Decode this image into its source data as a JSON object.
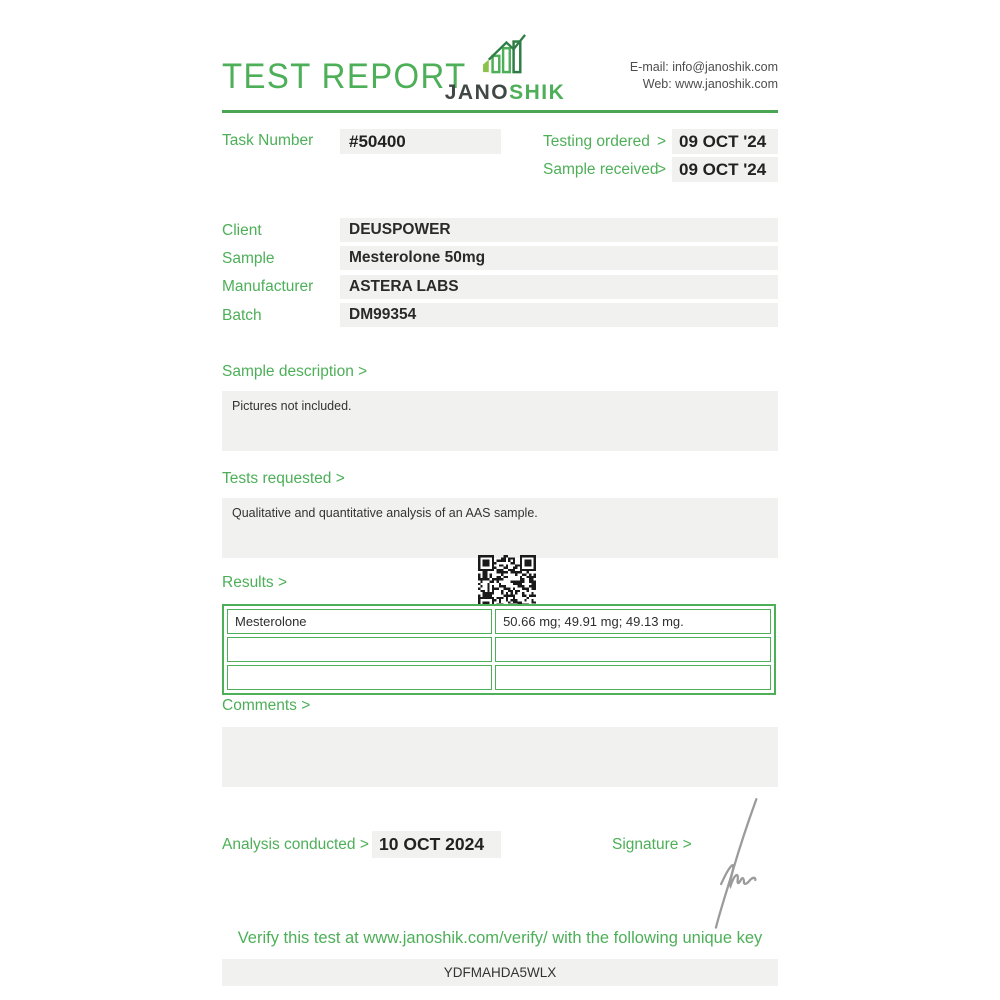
{
  "colors": {
    "accent_green": "#4daf58",
    "box_bg": "#f1f1ef",
    "text_dark": "#2a2a2a",
    "logo_dark": "#3f4845"
  },
  "icons": {
    "logo": "bar-chart-growth-icon",
    "qr": "qr-code",
    "signature": "handwritten-signature"
  },
  "header": {
    "title": "TEST REPORT",
    "logo_jano": "JANO",
    "logo_shik": "SHIK",
    "email_line": "E-mail: info@janoshik.com",
    "web_line": "Web: www.janoshik.com"
  },
  "task": {
    "label": "Task Number",
    "value": "#50400",
    "arrow": ">",
    "testing_ordered_label": "Testing ordered",
    "testing_ordered_value": "09 OCT '24",
    "sample_received_label": "Sample received",
    "sample_received_value": "09 OCT '24"
  },
  "info": {
    "client_label": "Client",
    "client_value": "DEUSPOWER",
    "sample_label": "Sample",
    "sample_value": "Mesterolone 50mg",
    "manufacturer_label": "Manufacturer",
    "manufacturer_value": "ASTERA LABS",
    "batch_label": "Batch",
    "batch_value": "DM99354"
  },
  "sample_description": {
    "label": "Sample description >",
    "text": "Pictures not included."
  },
  "tests_requested": {
    "label": "Tests requested >",
    "text": "Qualitative and quantitative analysis of an AAS sample."
  },
  "results": {
    "label": "Results >",
    "table": {
      "rows": [
        {
          "substance": "Mesterolone",
          "amounts": "50.66 mg; 49.91 mg; 49.13 mg."
        },
        {
          "substance": "",
          "amounts": ""
        },
        {
          "substance": "",
          "amounts": ""
        }
      ]
    }
  },
  "comments": {
    "label": "Comments >",
    "text": ""
  },
  "footer": {
    "analysis_label": "Analysis conducted >",
    "analysis_value": "10 OCT 2024",
    "signature_label": "Signature >",
    "verify_text": "Verify this test at www.janoshik.com/verify/ with the following unique key",
    "unique_key": "YDFMAHDA5WLX"
  }
}
